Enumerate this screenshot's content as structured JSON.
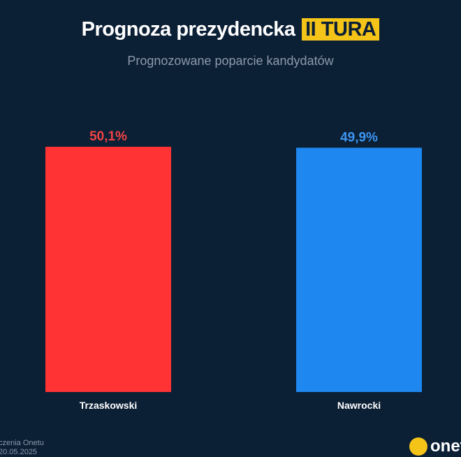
{
  "header": {
    "title": "Prognoza prezydencka",
    "title_highlight": "II TURA",
    "subtitle": "Prognozowane poparcie kandydatów"
  },
  "footer": {
    "source_line1": "czenia Onetu",
    "source_line2": "20.05.2025",
    "logo_text": "onet"
  },
  "colors": {
    "background": "#0b1f35",
    "highlight": "#f5c419"
  },
  "chart_data": {
    "type": "bar",
    "categories": [
      "Trzaskowski",
      "Nawrocki"
    ],
    "values": [
      50.1,
      49.9
    ],
    "value_labels": [
      "50,1%",
      "49,9%"
    ],
    "colors": [
      "#ff3333",
      "#1e88f0"
    ],
    "label_colors": [
      "#f24444",
      "#3d95f0"
    ],
    "ylim": [
      0,
      50.1
    ],
    "grid": false
  }
}
